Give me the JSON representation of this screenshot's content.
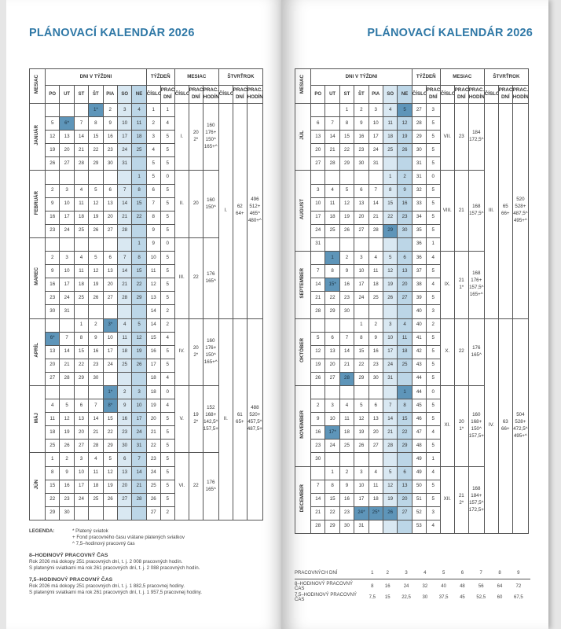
{
  "title": "PLÁNOVACÍ KALENDÁR 2026",
  "colors": {
    "title": "#2f78a6",
    "saturday": "#d9e8f2",
    "sunday": "#bcd6e7",
    "holiday": "#5e95b9"
  },
  "headers": {
    "month": "MESIAC",
    "days_in_week": "DNI V TÝŽDNI",
    "week": "TÝŽDEŇ",
    "month_group": "MESIAC",
    "quarter": "ŠTVRŤROK",
    "weekdays": [
      "PO",
      "UT",
      "ST",
      "ŠT",
      "PIA",
      "SO",
      "NE"
    ],
    "number": "ČÍSLO",
    "work_days": "PRAC. DNÍ",
    "work_hours": "PRAC. HODÍN"
  },
  "pages": [
    {
      "months": [
        {
          "name": "JANUÁR",
          "num": "I.",
          "work": [
            "20",
            "2*"
          ],
          "hours": [
            "160",
            "176+",
            "150^",
            "165+^"
          ],
          "holidays_marked": [
            "1",
            "6"
          ],
          "rows": [
            [
              "- - - 1* 2 3 4",
              "1",
              "1"
            ],
            [
              "5 6* 7 8 9 10 11",
              "2",
              "4"
            ],
            [
              "12 13 14 15 16 17 18",
              "3",
              "5"
            ],
            [
              "19 20 21 22 23 24 25",
              "4",
              "5"
            ],
            [
              "26 27 28 29 30 31 -",
              "5",
              "5"
            ]
          ]
        },
        {
          "name": "FEBRUÁR",
          "num": "II.",
          "work": [
            "20"
          ],
          "hours": [
            "160",
            "150^"
          ],
          "holidays_marked": [],
          "rows": [
            [
              "- - - - - - 1",
              "5",
              "0"
            ],
            [
              "2 3 4 5 6 7 8",
              "6",
              "5"
            ],
            [
              "9 10 11 12 13 14 15",
              "7",
              "5"
            ],
            [
              "16 17 18 19 20 21 22",
              "8",
              "5"
            ],
            [
              "23 24 25 26 27 28 -",
              "9",
              "5"
            ]
          ]
        },
        {
          "name": "MAREC",
          "num": "III.",
          "work": [
            "22"
          ],
          "hours": [
            "176",
            "165^"
          ],
          "holidays_marked": [],
          "rows": [
            [
              "- - - - - - 1",
              "9",
              "0"
            ],
            [
              "2 3 4 5 6 7 8",
              "10",
              "5"
            ],
            [
              "9 10 11 12 13 14 15",
              "11",
              "5"
            ],
            [
              "16 17 18 19 20 21 22",
              "12",
              "5"
            ],
            [
              "23 24 25 26 27 28 29",
              "13",
              "5"
            ],
            [
              "30 31 - - - - -",
              "14",
              "2"
            ]
          ]
        },
        {
          "name": "APRÍL",
          "num": "IV.",
          "work": [
            "20",
            "2*"
          ],
          "hours": [
            "160",
            "176+",
            "150^",
            "165+^"
          ],
          "holidays_marked": [
            "3",
            "6"
          ],
          "rows": [
            [
              "- - 1 2 3* 4 5",
              "14",
              "2"
            ],
            [
              "6* 7 8 9 10 11 12",
              "15",
              "4"
            ],
            [
              "13 14 15 16 17 18 19",
              "16",
              "5"
            ],
            [
              "20 21 22 23 24 25 26",
              "17",
              "5"
            ],
            [
              "27 28 29 30 - - -",
              "18",
              "4"
            ]
          ]
        },
        {
          "name": "MÁJ",
          "num": "V.",
          "work": [
            "19",
            "2*"
          ],
          "hours": [
            "152",
            "168+",
            "142,5^",
            "157,5+^"
          ],
          "holidays_marked": [
            "1",
            "8"
          ],
          "rows": [
            [
              "- - - - 1* 2 3",
              "18",
              "0"
            ],
            [
              "4 5 6 7 8* 9 10",
              "19",
              "4"
            ],
            [
              "11 12 13 14 15 16 17",
              "20",
              "5"
            ],
            [
              "18 19 20 21 22 23 24",
              "21",
              "5"
            ],
            [
              "25 26 27 28 29 30 31",
              "22",
              "5"
            ]
          ]
        },
        {
          "name": "JÚN",
          "num": "VI.",
          "work": [
            "22"
          ],
          "hours": [
            "176",
            "165^"
          ],
          "holidays_marked": [],
          "rows": [
            [
              "1 2 3 4 5 6 7",
              "23",
              "5"
            ],
            [
              "8 9 10 11 12 13 14",
              "24",
              "5"
            ],
            [
              "15 16 17 18 19 20 21",
              "25",
              "5"
            ],
            [
              "22 23 24 25 26 27 28",
              "26",
              "5"
            ],
            [
              "29 30 - - - - -",
              "27",
              "2"
            ]
          ]
        }
      ],
      "quarters": [
        {
          "num": "I.",
          "work": [
            "62",
            "64+"
          ],
          "hours": [
            "496",
            "512+",
            "465^",
            "480+^"
          ]
        },
        {
          "num": "II.",
          "work": [
            "61",
            "65+"
          ],
          "hours": [
            "488",
            "520+",
            "457,5^",
            "487,5+^"
          ]
        }
      ]
    },
    {
      "months": [
        {
          "name": "JÚL",
          "num": "VII.",
          "work": [
            "23"
          ],
          "hours": [
            "184",
            "172,5^"
          ],
          "holidays_marked": [
            "5"
          ],
          "rows": [
            [
              "- - 1 2 3 4 5",
              "27",
              "3"
            ],
            [
              "6 7 8 9 10 11 12",
              "28",
              "5"
            ],
            [
              "13 14 15 16 17 18 19",
              "29",
              "5"
            ],
            [
              "20 21 22 23 24 25 26",
              "30",
              "5"
            ],
            [
              "27 28 29 30 31 - -",
              "31",
              "5"
            ]
          ]
        },
        {
          "name": "AUGUST",
          "num": "VIII.",
          "work": [
            "21"
          ],
          "hours": [
            "168",
            "157,5^"
          ],
          "holidays_marked": [
            "29"
          ],
          "rows": [
            [
              "- - - - - 1 2",
              "31",
              "0"
            ],
            [
              "3 4 5 6 7 8 9",
              "32",
              "5"
            ],
            [
              "10 11 12 13 14 15 16",
              "33",
              "5"
            ],
            [
              "17 18 19 20 21 22 23",
              "34",
              "5"
            ],
            [
              "24 25 26 27 28 29 30",
              "35",
              "5"
            ],
            [
              "31 - - - - - -",
              "36",
              "1"
            ]
          ]
        },
        {
          "name": "SEPTEMBER",
          "num": "IX.",
          "work": [
            "21",
            "1*"
          ],
          "hours": [
            "168",
            "176+",
            "157,5^",
            "165+^"
          ],
          "holidays_marked": [
            "1",
            "15"
          ],
          "rows": [
            [
              "- 1 2 3 4 5 6",
              "36",
              "4"
            ],
            [
              "7 8 9 10 11 12 13",
              "37",
              "5"
            ],
            [
              "14 15* 16 17 18 19 20",
              "38",
              "4"
            ],
            [
              "21 22 23 24 25 26 27",
              "39",
              "5"
            ],
            [
              "28 29 30 - - - -",
              "40",
              "3"
            ]
          ]
        },
        {
          "name": "OKTÓBER",
          "num": "X.",
          "work": [
            "22"
          ],
          "hours": [
            "176",
            "165^"
          ],
          "holidays_marked": [
            "28"
          ],
          "rows": [
            [
              "- - - 1 2 3 4",
              "40",
              "2"
            ],
            [
              "5 6 7 8 9 10 11",
              "41",
              "5"
            ],
            [
              "12 13 14 15 16 17 18",
              "42",
              "5"
            ],
            [
              "19 20 21 22 23 24 25",
              "43",
              "5"
            ],
            [
              "26 27 28 29 30 31 -",
              "44",
              "5"
            ]
          ]
        },
        {
          "name": "NOVEMBER",
          "num": "XI.",
          "work": [
            "20",
            "1*"
          ],
          "hours": [
            "160",
            "168+",
            "150^",
            "157,5+^"
          ],
          "holidays_marked": [
            "1",
            "17"
          ],
          "rows": [
            [
              "- - - - - - 1",
              "44",
              "0"
            ],
            [
              "2 3 4 5 6 7 8",
              "45",
              "5"
            ],
            [
              "9 10 11 12 13 14 15",
              "46",
              "5"
            ],
            [
              "16 17* 18 19 20 21 22",
              "47",
              "4"
            ],
            [
              "23 24 25 26 27 28 29",
              "48",
              "5"
            ],
            [
              "30 - - - - - -",
              "49",
              "1"
            ]
          ]
        },
        {
          "name": "DECEMBER",
          "num": "XII.",
          "work": [
            "21",
            "2*"
          ],
          "hours": [
            "168",
            "184+",
            "157,5^",
            "172,5+^"
          ],
          "holidays_marked": [
            "24",
            "25",
            "26"
          ],
          "rows": [
            [
              "- 1 2 3 4 5 6",
              "49",
              "4"
            ],
            [
              "7 8 9 10 11 12 13",
              "50",
              "5"
            ],
            [
              "14 15 16 17 18 19 20",
              "51",
              "5"
            ],
            [
              "21 22 23 24* 25* 26 27",
              "52",
              "3"
            ],
            [
              "28 29 30 31 - - -",
              "53",
              "4"
            ]
          ]
        }
      ],
      "quarters": [
        {
          "num": "III.",
          "work": [
            "65",
            "66+"
          ],
          "hours": [
            "520",
            "528+",
            "487,5^",
            "495+^"
          ]
        },
        {
          "num": "IV.",
          "work": [
            "63",
            "66+"
          ],
          "hours": [
            "504",
            "528+",
            "472,5^",
            "495+^"
          ]
        }
      ]
    }
  ],
  "legend": {
    "label": "LEGENDA:",
    "items": [
      "* Platený sviatok",
      "+ Fond pracovného času vrátane platených sviatkov",
      "^ 7,5–hodinový pracovný čas"
    ],
    "sections": [
      {
        "title": "8–HODINOVÝ PRACOVNÝ ČAS",
        "lines": [
          "Rok 2026 má dokopy 251 pracovných dní, t. j. 2 008 pracovných hodín.",
          "S platenými sviatkami má rok 261 pracovných dní, t. j. 2 088 pracovných hodín."
        ]
      },
      {
        "title": "7,5–HODINOVÝ PRACOVNÝ ČAS",
        "lines": [
          "Rok 2026 má dokopy 251 pracovných dní, t. j. 1 882,5 pracovnej hodiny.",
          "S platenými sviatkami má rok 261 pracovných dní, t. j. 1 957,5 pracovnej hodiny."
        ]
      }
    ]
  },
  "footer_table": {
    "rows": [
      {
        "label": "PRACOVNÝCH DNÍ",
        "values": [
          "1",
          "2",
          "3",
          "4",
          "5",
          "6",
          "7",
          "8",
          "9"
        ]
      },
      {
        "label": "8–HODINOVÝ PRACOVNÝ ČAS",
        "values": [
          "8",
          "16",
          "24",
          "32",
          "40",
          "48",
          "56",
          "64",
          "72"
        ]
      },
      {
        "label": "7,5–HODINOVÝ PRACOVNÝ ČAS",
        "values": [
          "7,5",
          "15",
          "22,5",
          "30",
          "37,5",
          "45",
          "52,5",
          "60",
          "67,5"
        ]
      }
    ]
  }
}
